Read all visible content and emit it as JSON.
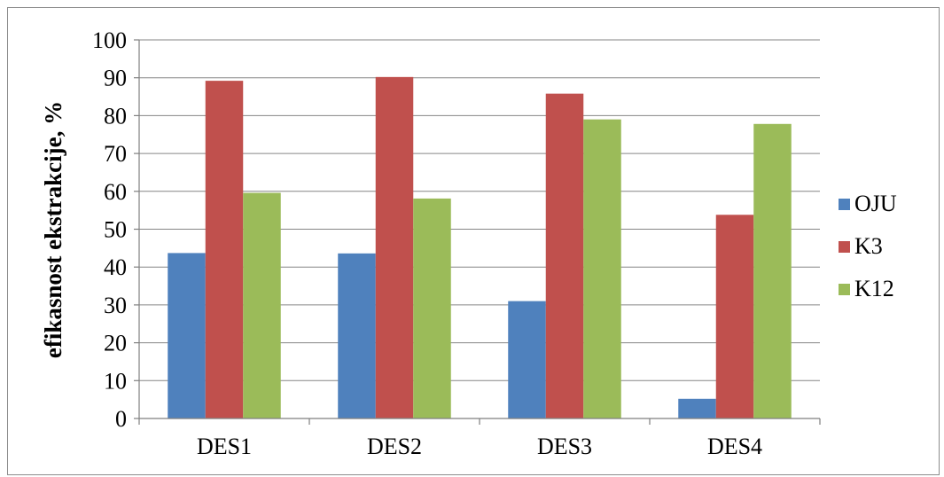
{
  "chart_data": {
    "type": "bar",
    "title": "",
    "xlabel": "",
    "ylabel": "efikasnost ekstrakcije, %",
    "categories": [
      "DES1",
      "DES2",
      "DES3",
      "DES4"
    ],
    "series": [
      {
        "name": "OJU",
        "color": "#4f81bd",
        "values": [
          43.7,
          43.6,
          31.0,
          5.2
        ]
      },
      {
        "name": "K3",
        "color": "#c0504d",
        "values": [
          89.2,
          90.2,
          85.8,
          53.8
        ]
      },
      {
        "name": "K12",
        "color": "#9bbb59",
        "values": [
          59.6,
          58.1,
          79.0,
          77.8
        ]
      }
    ],
    "ylim": [
      0,
      100
    ],
    "yticks": [
      "0",
      "10",
      "20",
      "30",
      "40",
      "50",
      "60",
      "70",
      "80",
      "90",
      "100"
    ],
    "grid": true,
    "legend": "right"
  }
}
